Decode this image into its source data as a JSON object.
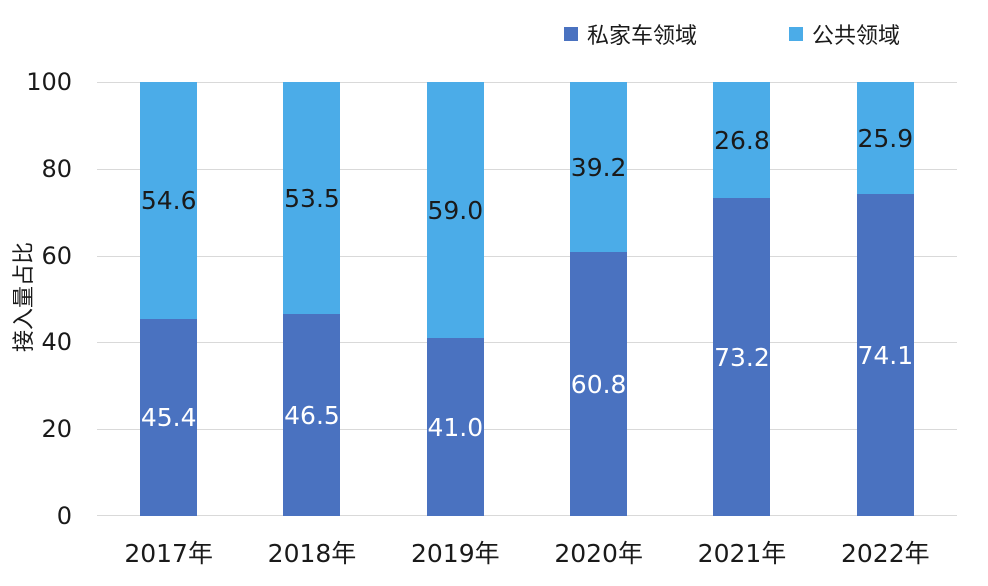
{
  "chart_data": {
    "type": "bar",
    "stacked": true,
    "title": "",
    "categories": [
      "2017年",
      "2018年",
      "2019年",
      "2020年",
      "2021年",
      "2022年"
    ],
    "series": [
      {
        "name": "私家车领域",
        "color": "#4a72c0",
        "label_color": "#ffffff",
        "values": [
          45.4,
          46.5,
          41.0,
          60.8,
          73.2,
          74.1
        ],
        "labels": [
          "45.4",
          "46.5",
          "41.0",
          "60.8",
          "73.2",
          "74.1"
        ]
      },
      {
        "name": "公共领域",
        "color": "#4bace8",
        "label_color": "#1a1a1a",
        "values": [
          54.6,
          53.5,
          59.0,
          39.2,
          26.8,
          25.9
        ],
        "labels": [
          "54.6",
          "53.5",
          "59.0",
          "39.2",
          "26.8",
          "25.9"
        ]
      }
    ],
    "xlabel": "",
    "ylabel": "接入量占比",
    "ylim": [
      0,
      100
    ],
    "yticks": [
      "0",
      "20",
      "40",
      "60",
      "80",
      "100"
    ],
    "grid": true,
    "legend_position": "top-right",
    "gridline_color": "#d9d9d9",
    "text_color": "#1a1a1a",
    "background_color": "#ffffff"
  }
}
